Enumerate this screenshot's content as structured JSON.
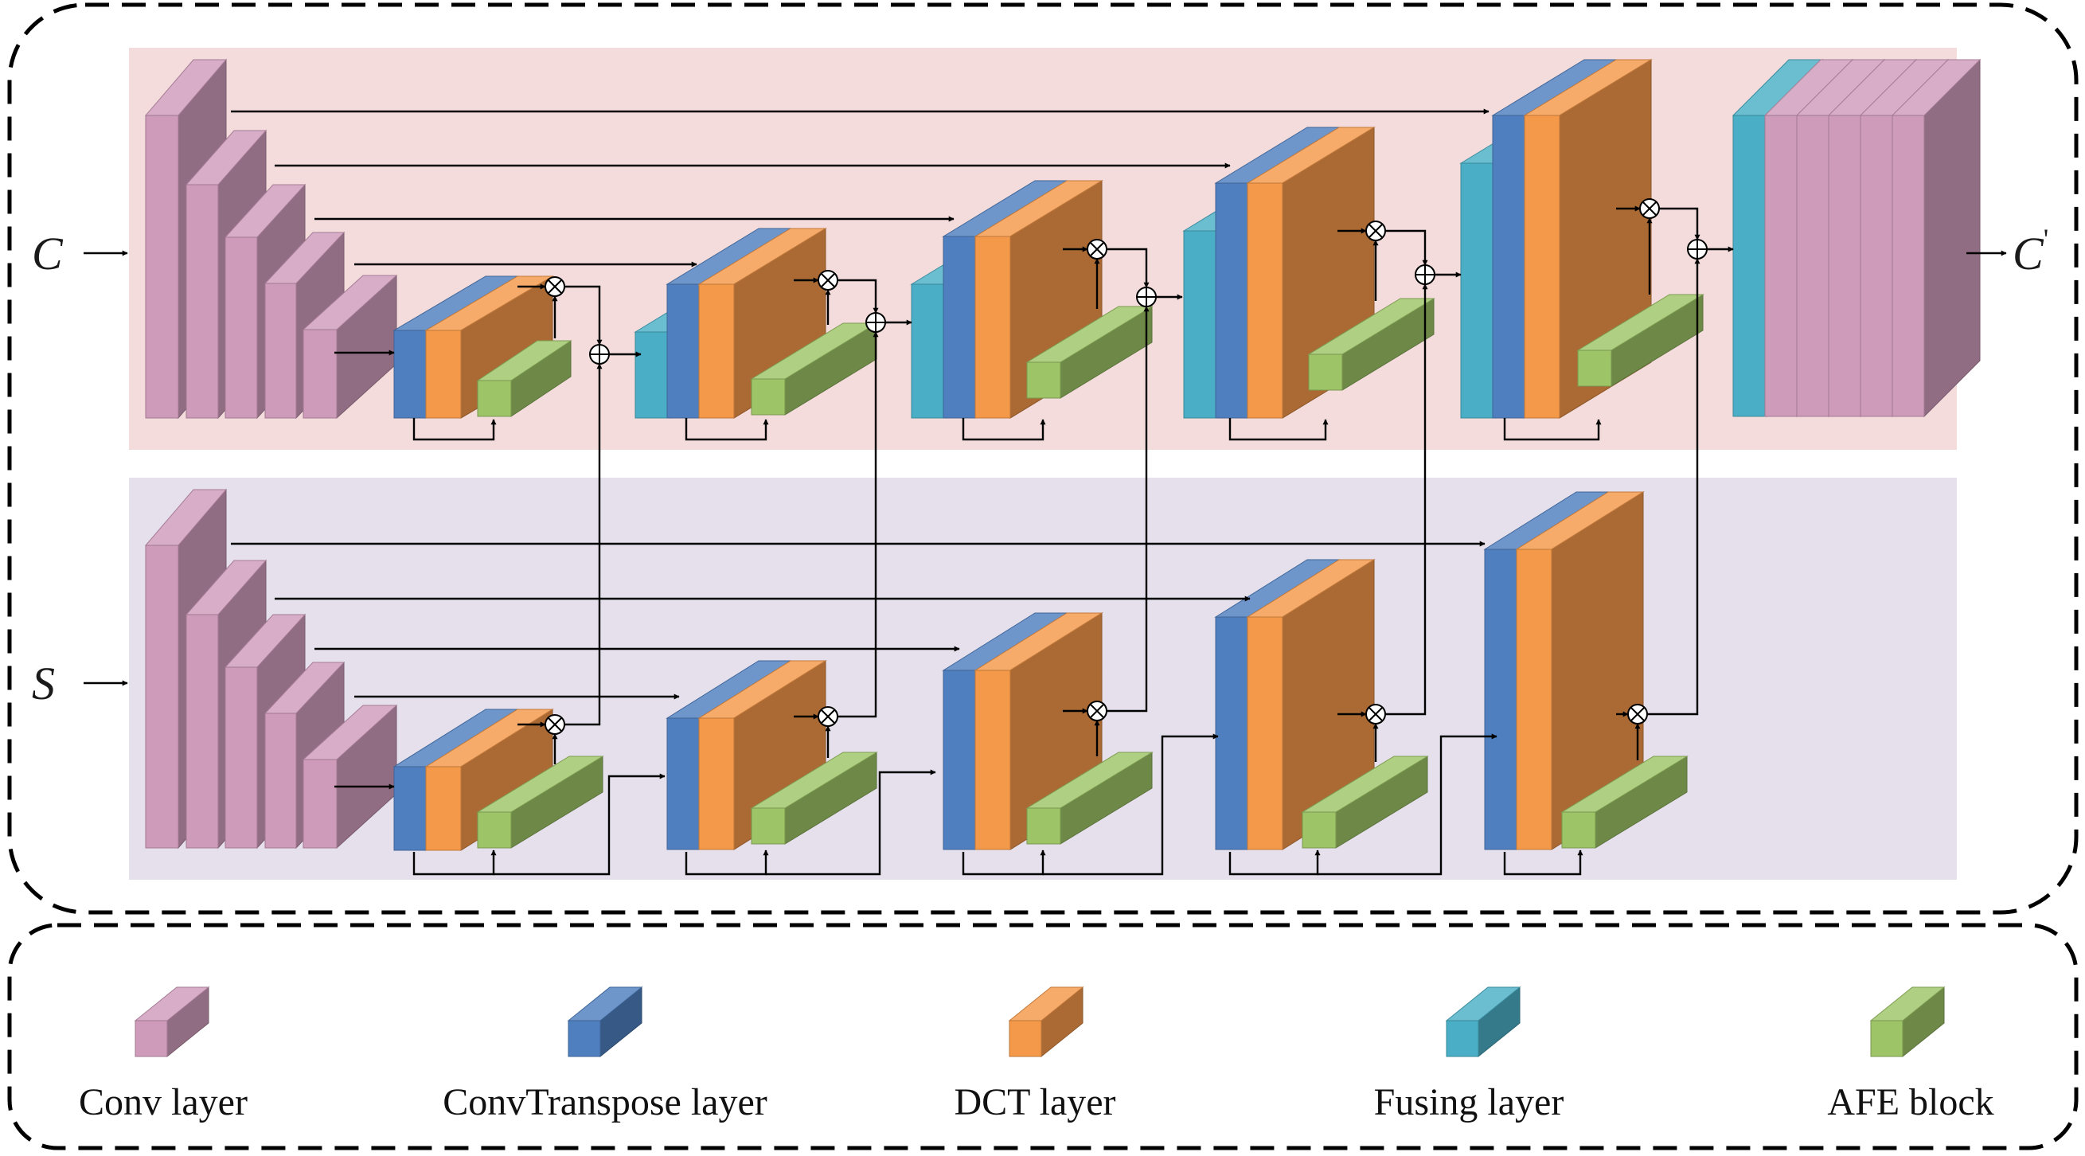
{
  "inputs": {
    "content": "C",
    "style": "S",
    "output": "C",
    "output_prime": "'"
  },
  "operators": {
    "multiply": "⊗",
    "add": "⊕"
  },
  "legend": [
    {
      "key": "conv",
      "label": "Conv layer",
      "color": "#cf9bbb"
    },
    {
      "key": "convtranspose",
      "label": "ConvTranspose layer",
      "color": "#4f7fbf"
    },
    {
      "key": "dct",
      "label": "DCT layer",
      "color": "#f4984a"
    },
    {
      "key": "fusing",
      "label": "Fusing layer",
      "color": "#4aafc6"
    },
    {
      "key": "afe",
      "label": "AFE block",
      "color": "#9dc466"
    }
  ],
  "colors": {
    "top_panel": "#f3dcdb",
    "bottom_panel": "#e6e0ec",
    "frame_dash": "#000000"
  }
}
